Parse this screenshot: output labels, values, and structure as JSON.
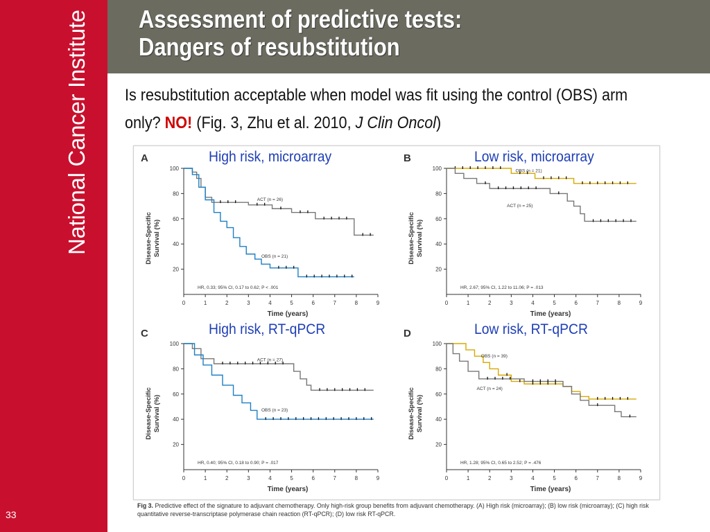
{
  "slide": {
    "title_line1": "Assessment of predictive tests:",
    "title_line2": "Dangers of  resubstitution",
    "subtitle_pre": "Is resubstitution acceptable when model was fit using the control (OBS) arm only?",
    "subtitle_no": "NO!",
    "subtitle_mid": "(Fig. 3, Zhu et al. 2010,",
    "subtitle_journal": "J Clin Oncol",
    "subtitle_close": ")",
    "sidebar_brand": "National Cancer Institute",
    "slide_number": "33",
    "caption_label": "Fig 3.",
    "caption_text": "Predictive effect of the signature to adjuvant chemotherapy. Only high-risk group benefits from adjuvant chemotherapy. (A) High risk (microarray); (B) low risk (microarray); (C) high risk quantitative reverse-transcriptase polymerase chain reaction (RT-qPCR); (D) low risk RT-qPCR.",
    "colors": {
      "sidebar": "#c8102e",
      "header": "#6b6b60",
      "panel_title": "#1f3fb6",
      "no": "#d00000",
      "obs_blue": "#1c7fc4",
      "obs_gold": "#d8a800",
      "act_gray": "#777777"
    }
  },
  "chart_data": [
    {
      "type": "line",
      "panel": "A",
      "title": "High risk, microarray",
      "xlabel": "Time (years)",
      "ylabel_line1": "Disease-Specific",
      "ylabel_line2": "Survival (%)",
      "xlim": [
        0,
        9
      ],
      "ylim": [
        0,
        100
      ],
      "x_ticks": [
        "0",
        "1",
        "2",
        "3",
        "4",
        "5",
        "6",
        "7",
        "8",
        "9"
      ],
      "y_ticks": [
        "20",
        "40",
        "60",
        "80",
        "100"
      ],
      "annotation": "HR, 0.33; 95% CI, 0.17 to 0.62; P < .001",
      "series": [
        {
          "name": "ACT (n = 26)",
          "color": "#777777",
          "points": [
            [
              0,
              100
            ],
            [
              0.4,
              97
            ],
            [
              0.6,
              92
            ],
            [
              0.8,
              85
            ],
            [
              1.0,
              77
            ],
            [
              1.3,
              73
            ],
            [
              2.8,
              73
            ],
            [
              3.0,
              71
            ],
            [
              4.0,
              71
            ],
            [
              4.1,
              68
            ],
            [
              4.8,
              68
            ],
            [
              5.0,
              65
            ],
            [
              5.9,
              65
            ],
            [
              6.1,
              60
            ],
            [
              7.8,
              60
            ],
            [
              7.9,
              47
            ],
            [
              8.8,
              47
            ]
          ],
          "label_xy": [
            3.4,
            73
          ]
        },
        {
          "name": "OBS (n = 21)",
          "color": "#1c7fc4",
          "points": [
            [
              0,
              100
            ],
            [
              0.4,
              95
            ],
            [
              0.7,
              85
            ],
            [
              1.0,
              75
            ],
            [
              1.4,
              65
            ],
            [
              1.7,
              58
            ],
            [
              2.0,
              53
            ],
            [
              2.3,
              45
            ],
            [
              2.6,
              38
            ],
            [
              2.9,
              32
            ],
            [
              3.3,
              28
            ],
            [
              3.6,
              24
            ],
            [
              4.0,
              21
            ],
            [
              5.2,
              21
            ],
            [
              5.3,
              14
            ],
            [
              7.9,
              14
            ]
          ],
          "label_xy": [
            3.6,
            28
          ]
        }
      ]
    },
    {
      "type": "line",
      "panel": "B",
      "title": "Low risk, microarray",
      "xlabel": "Time (years)",
      "ylabel_line1": "Disease-Specific",
      "ylabel_line2": "Survival (%)",
      "xlim": [
        0,
        9
      ],
      "ylim": [
        0,
        100
      ],
      "x_ticks": [
        "0",
        "1",
        "2",
        "3",
        "4",
        "5",
        "6",
        "7",
        "8",
        "9"
      ],
      "y_ticks": [
        "20",
        "40",
        "60",
        "80",
        "100"
      ],
      "annotation": "HR, 2.67; 95% CI, 1.22 to 11.06; P = .013",
      "series": [
        {
          "name": "OBS (n = 21)",
          "color": "#d8a800",
          "points": [
            [
              0,
              100
            ],
            [
              2.9,
              100
            ],
            [
              3.0,
              96
            ],
            [
              4.0,
              96
            ],
            [
              4.1,
              92
            ],
            [
              5.8,
              92
            ],
            [
              5.9,
              88
            ],
            [
              8.8,
              88
            ]
          ],
          "label_xy": [
            3.2,
            96
          ]
        },
        {
          "name": "ACT (n = 25)",
          "color": "#777777",
          "points": [
            [
              0,
              100
            ],
            [
              0.4,
              96
            ],
            [
              0.8,
              92
            ],
            [
              1.4,
              88
            ],
            [
              2.0,
              84
            ],
            [
              4.5,
              84
            ],
            [
              4.8,
              80
            ],
            [
              5.4,
              80
            ],
            [
              5.6,
              74
            ],
            [
              5.9,
              70
            ],
            [
              6.2,
              64
            ],
            [
              6.4,
              58
            ],
            [
              8.8,
              58
            ]
          ],
          "label_xy": [
            2.8,
            68
          ]
        }
      ]
    },
    {
      "type": "line",
      "panel": "C",
      "title": "High risk, RT-qPCR",
      "xlabel": "Time (years)",
      "ylabel_line1": "Disease-Specific",
      "ylabel_line2": "Survival (%)",
      "xlim": [
        0,
        9
      ],
      "ylim": [
        0,
        100
      ],
      "x_ticks": [
        "0",
        "1",
        "2",
        "3",
        "4",
        "5",
        "6",
        "7",
        "8",
        "9"
      ],
      "y_ticks": [
        "20",
        "40",
        "60",
        "80",
        "100"
      ],
      "annotation": "HR, 0.40; 95% CI, 0.18 to 0.90; P = .017",
      "series": [
        {
          "name": "ACT (n = 27)",
          "color": "#777777",
          "points": [
            [
              0,
              100
            ],
            [
              0.4,
              96
            ],
            [
              0.8,
              88
            ],
            [
              1.4,
              84
            ],
            [
              4.9,
              84
            ],
            [
              5.1,
              78
            ],
            [
              5.4,
              72
            ],
            [
              5.7,
              67
            ],
            [
              5.9,
              63
            ],
            [
              8.8,
              63
            ]
          ],
          "label_xy": [
            3.4,
            85
          ]
        },
        {
          "name": "OBS (n = 23)",
          "color": "#1c7fc4",
          "points": [
            [
              0,
              100
            ],
            [
              0.5,
              91
            ],
            [
              0.9,
              83
            ],
            [
              1.3,
              75
            ],
            [
              1.8,
              67
            ],
            [
              2.3,
              59
            ],
            [
              2.7,
              53
            ],
            [
              3.1,
              47
            ],
            [
              3.4,
              40
            ],
            [
              8.8,
              40
            ]
          ],
          "label_xy": [
            3.6,
            45
          ]
        }
      ]
    },
    {
      "type": "line",
      "panel": "D",
      "title": "Low risk, RT-qPCR",
      "xlabel": "Time (years)",
      "ylabel_line1": "Disease-Specific",
      "ylabel_line2": "Survival (%)",
      "xlim": [
        0,
        9
      ],
      "ylim": [
        0,
        100
      ],
      "x_ticks": [
        "0",
        "1",
        "2",
        "3",
        "4",
        "5",
        "6",
        "7",
        "8",
        "9"
      ],
      "y_ticks": [
        "20",
        "40",
        "60",
        "80",
        "100"
      ],
      "annotation": "HR, 1.28; 95% CI, 0.65 to 2.52; P = .476",
      "series": [
        {
          "name": "OBS (n = 39)",
          "color": "#d8a800",
          "points": [
            [
              0,
              100
            ],
            [
              0.6,
              100
            ],
            [
              0.9,
              95
            ],
            [
              1.3,
              90
            ],
            [
              1.7,
              85
            ],
            [
              2.0,
              80
            ],
            [
              2.4,
              75
            ],
            [
              3.0,
              70
            ],
            [
              3.6,
              68
            ],
            [
              5.4,
              66
            ],
            [
              5.8,
              62
            ],
            [
              6.2,
              58
            ],
            [
              6.6,
              56
            ],
            [
              8.8,
              56
            ]
          ],
          "label_xy": [
            1.6,
            88
          ]
        },
        {
          "name": "ACT (n = 24)",
          "color": "#777777",
          "points": [
            [
              0,
              100
            ],
            [
              0.3,
              92
            ],
            [
              0.6,
              86
            ],
            [
              1.0,
              78
            ],
            [
              1.5,
              72
            ],
            [
              3.2,
              72
            ],
            [
              3.6,
              70
            ],
            [
              5.4,
              66
            ],
            [
              5.8,
              60
            ],
            [
              6.2,
              55
            ],
            [
              6.6,
              51
            ],
            [
              7.4,
              51
            ],
            [
              7.8,
              46
            ],
            [
              8.1,
              42
            ],
            [
              8.8,
              42
            ]
          ],
          "label_xy": [
            1.4,
            62
          ]
        }
      ]
    }
  ]
}
